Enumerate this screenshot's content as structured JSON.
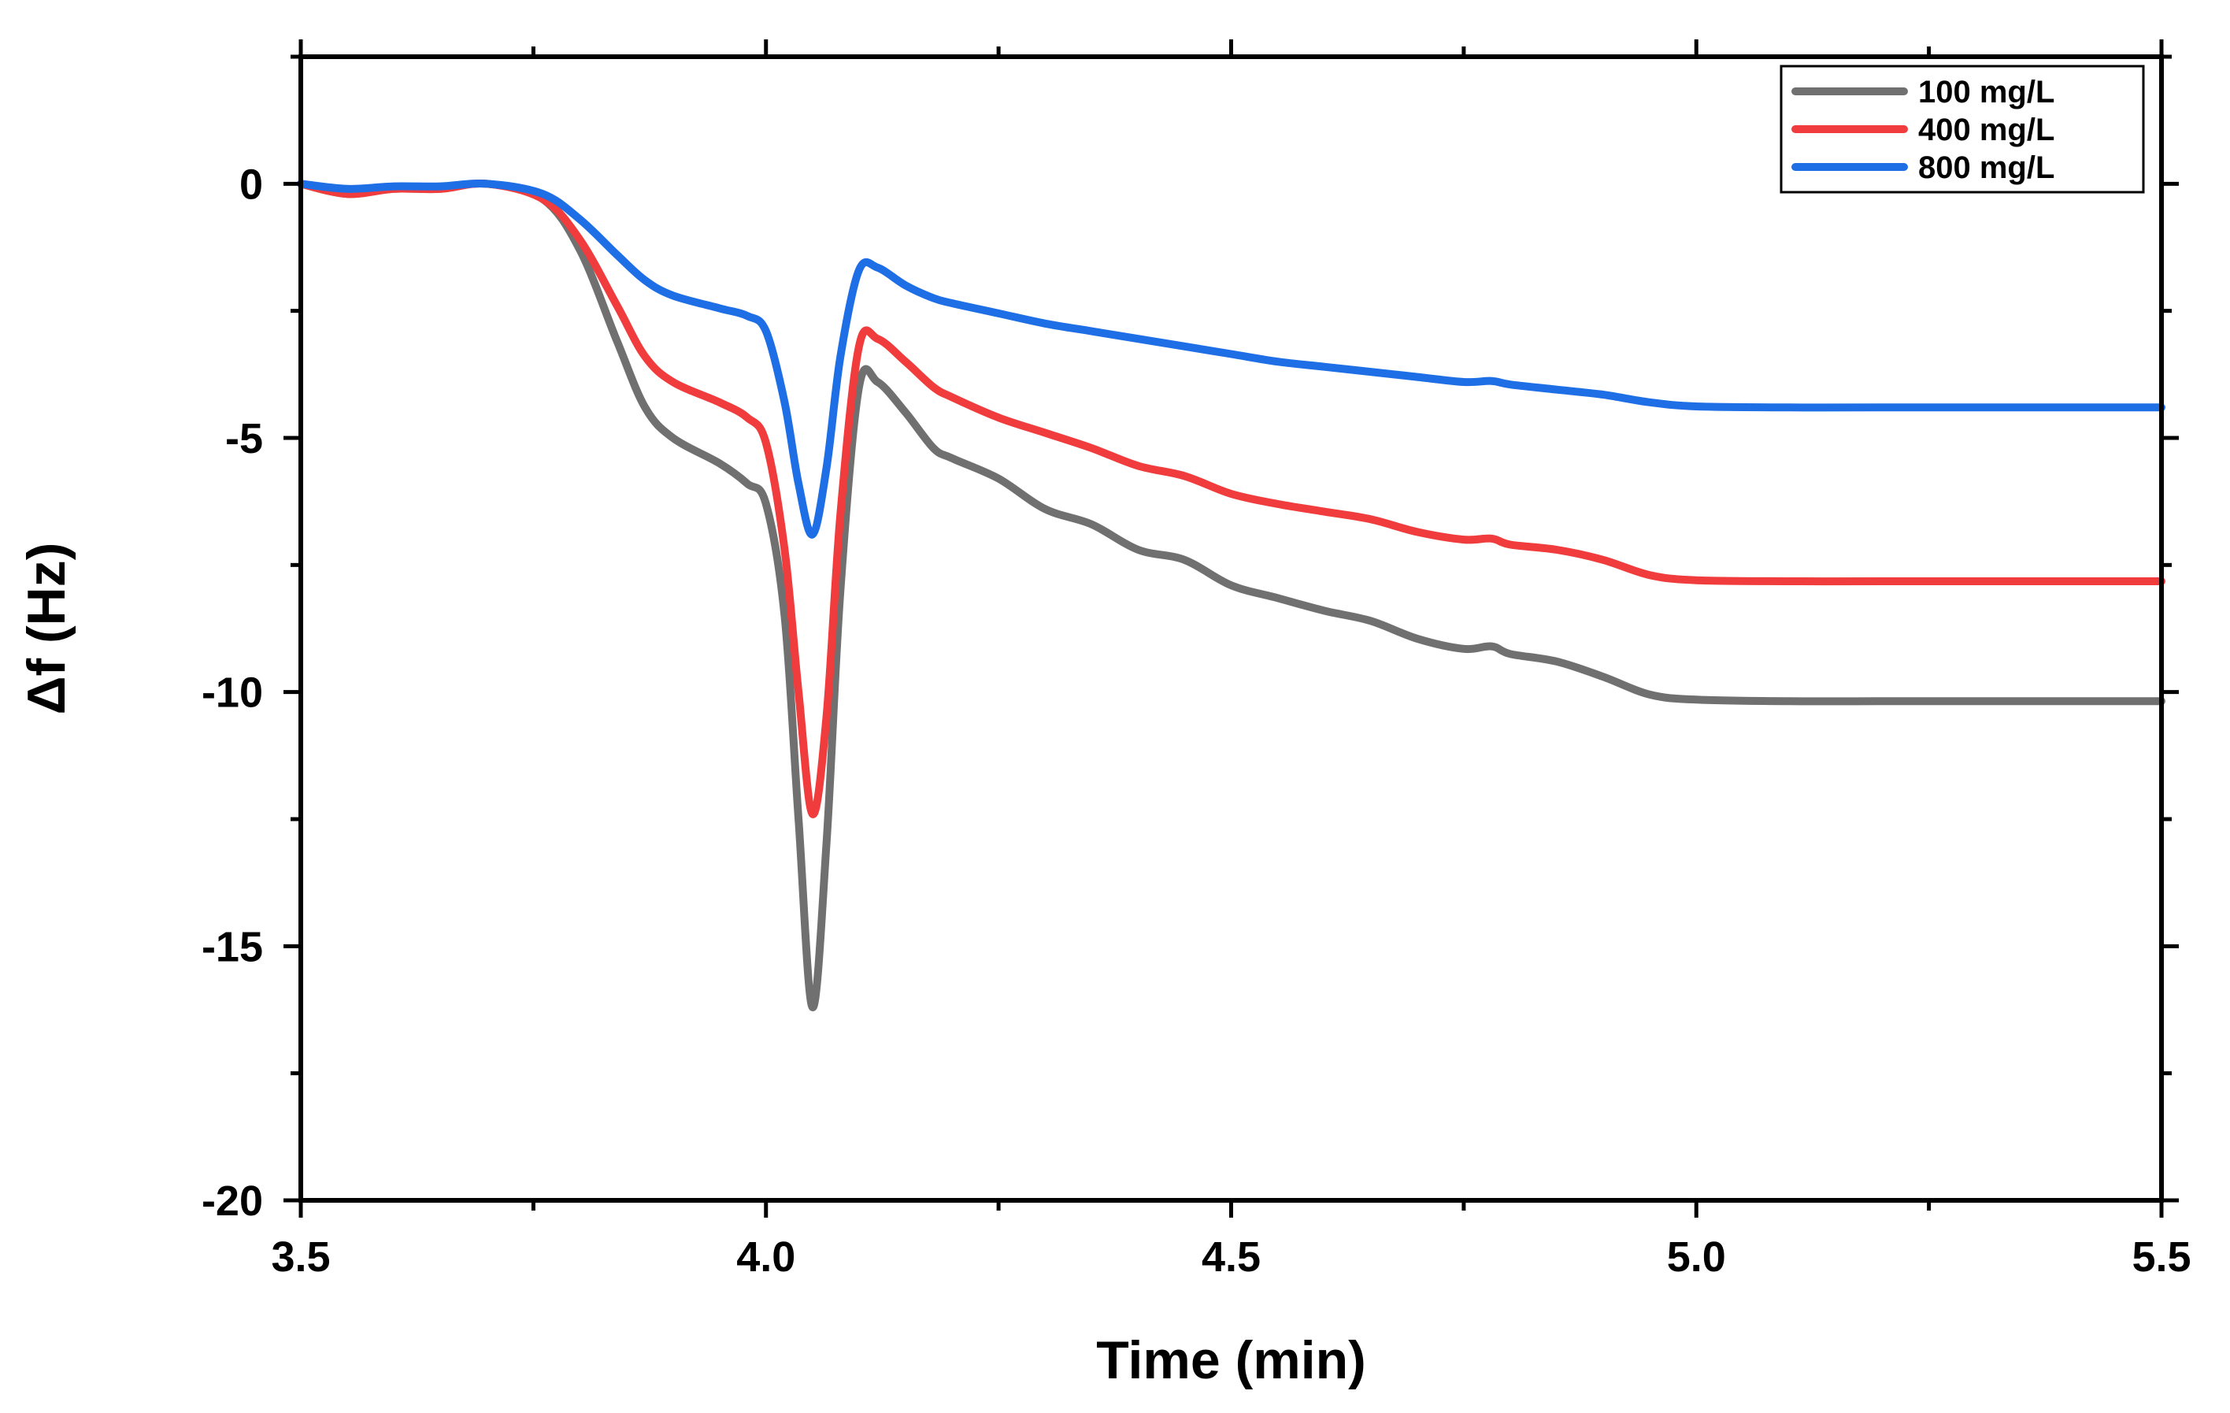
{
  "chart_data": {
    "type": "line",
    "title": "",
    "xlabel": "Time (min)",
    "ylabel": "Δf (Hz)",
    "xlim": [
      3.5,
      5.5
    ],
    "ylim": [
      -20,
      2.5
    ],
    "x_ticks": [
      3.5,
      4.0,
      4.5,
      5.0,
      5.5
    ],
    "x_tick_labels": [
      "3.5",
      "4.0",
      "4.5",
      "5.0",
      "5.5"
    ],
    "y_ticks": [
      0,
      -5,
      -10,
      -15,
      -20
    ],
    "y_tick_labels": [
      "0",
      "-5",
      "-10",
      "-15",
      "-20"
    ],
    "grid": false,
    "legend_position": "top-right",
    "series": [
      {
        "name": "100 mg/L",
        "color": "#707070",
        "points": [
          [
            3.5,
            0
          ],
          [
            3.55,
            -0.2
          ],
          [
            3.6,
            -0.1
          ],
          [
            3.65,
            -0.1
          ],
          [
            3.7,
            0
          ],
          [
            3.76,
            -0.3
          ],
          [
            3.8,
            -1.3
          ],
          [
            3.84,
            -3.1
          ],
          [
            3.87,
            -4.4
          ],
          [
            3.9,
            -5
          ],
          [
            3.95,
            -5.5
          ],
          [
            3.98,
            -5.9
          ],
          [
            4.0,
            -6.3
          ],
          [
            4.02,
            -8.5
          ],
          [
            4.035,
            -12.5
          ],
          [
            4.05,
            -16.2
          ],
          [
            4.065,
            -13
          ],
          [
            4.08,
            -8
          ],
          [
            4.1,
            -4
          ],
          [
            4.12,
            -3.9
          ],
          [
            4.15,
            -4.5
          ],
          [
            4.18,
            -5.2
          ],
          [
            4.2,
            -5.4
          ],
          [
            4.25,
            -5.8
          ],
          [
            4.3,
            -6.4
          ],
          [
            4.35,
            -6.7
          ],
          [
            4.4,
            -7.2
          ],
          [
            4.45,
            -7.4
          ],
          [
            4.5,
            -7.9
          ],
          [
            4.55,
            -8.15
          ],
          [
            4.6,
            -8.4
          ],
          [
            4.65,
            -8.6
          ],
          [
            4.7,
            -8.95
          ],
          [
            4.75,
            -9.15
          ],
          [
            4.78,
            -9.1
          ],
          [
            4.8,
            -9.25
          ],
          [
            4.85,
            -9.4
          ],
          [
            4.9,
            -9.7
          ],
          [
            4.95,
            -10.05
          ],
          [
            5.0,
            -10.15
          ],
          [
            5.1,
            -10.18
          ],
          [
            5.2,
            -10.18
          ],
          [
            5.3,
            -10.18
          ],
          [
            5.4,
            -10.18
          ],
          [
            5.5,
            -10.18
          ]
        ]
      },
      {
        "name": "400 mg/L",
        "color": "#f03c3c",
        "points": [
          [
            3.5,
            0
          ],
          [
            3.55,
            -0.2
          ],
          [
            3.6,
            -0.1
          ],
          [
            3.65,
            -0.1
          ],
          [
            3.7,
            0
          ],
          [
            3.76,
            -0.3
          ],
          [
            3.8,
            -1.1
          ],
          [
            3.84,
            -2.4
          ],
          [
            3.87,
            -3.4
          ],
          [
            3.9,
            -3.9
          ],
          [
            3.95,
            -4.3
          ],
          [
            3.98,
            -4.6
          ],
          [
            4.0,
            -5.1
          ],
          [
            4.02,
            -7.2
          ],
          [
            4.035,
            -10
          ],
          [
            4.05,
            -12.4
          ],
          [
            4.065,
            -10.5
          ],
          [
            4.08,
            -6.5
          ],
          [
            4.1,
            -3.2
          ],
          [
            4.12,
            -3.05
          ],
          [
            4.15,
            -3.5
          ],
          [
            4.18,
            -4
          ],
          [
            4.2,
            -4.2
          ],
          [
            4.25,
            -4.6
          ],
          [
            4.3,
            -4.9
          ],
          [
            4.35,
            -5.2
          ],
          [
            4.4,
            -5.55
          ],
          [
            4.45,
            -5.75
          ],
          [
            4.5,
            -6.1
          ],
          [
            4.55,
            -6.3
          ],
          [
            4.6,
            -6.45
          ],
          [
            4.65,
            -6.6
          ],
          [
            4.7,
            -6.85
          ],
          [
            4.75,
            -7.0
          ],
          [
            4.78,
            -6.98
          ],
          [
            4.8,
            -7.1
          ],
          [
            4.85,
            -7.2
          ],
          [
            4.9,
            -7.4
          ],
          [
            4.95,
            -7.7
          ],
          [
            5.0,
            -7.8
          ],
          [
            5.1,
            -7.82
          ],
          [
            5.2,
            -7.82
          ],
          [
            5.3,
            -7.82
          ],
          [
            5.4,
            -7.82
          ],
          [
            5.5,
            -7.82
          ]
        ]
      },
      {
        "name": "800 mg/L",
        "color": "#1e6ee6",
        "points": [
          [
            3.5,
            0
          ],
          [
            3.55,
            -0.1
          ],
          [
            3.6,
            -0.05
          ],
          [
            3.65,
            -0.05
          ],
          [
            3.7,
            0
          ],
          [
            3.76,
            -0.2
          ],
          [
            3.8,
            -0.7
          ],
          [
            3.84,
            -1.4
          ],
          [
            3.87,
            -1.9
          ],
          [
            3.9,
            -2.2
          ],
          [
            3.95,
            -2.45
          ],
          [
            3.98,
            -2.6
          ],
          [
            4.0,
            -2.9
          ],
          [
            4.02,
            -4.3
          ],
          [
            4.035,
            -5.9
          ],
          [
            4.05,
            -6.9
          ],
          [
            4.065,
            -5.6
          ],
          [
            4.08,
            -3.4
          ],
          [
            4.1,
            -1.7
          ],
          [
            4.12,
            -1.65
          ],
          [
            4.15,
            -2
          ],
          [
            4.18,
            -2.25
          ],
          [
            4.2,
            -2.35
          ],
          [
            4.25,
            -2.55
          ],
          [
            4.3,
            -2.75
          ],
          [
            4.35,
            -2.9
          ],
          [
            4.4,
            -3.05
          ],
          [
            4.45,
            -3.2
          ],
          [
            4.5,
            -3.35
          ],
          [
            4.55,
            -3.5
          ],
          [
            4.6,
            -3.6
          ],
          [
            4.65,
            -3.7
          ],
          [
            4.7,
            -3.8
          ],
          [
            4.75,
            -3.9
          ],
          [
            4.78,
            -3.88
          ],
          [
            4.8,
            -3.95
          ],
          [
            4.85,
            -4.05
          ],
          [
            4.9,
            -4.15
          ],
          [
            4.95,
            -4.3
          ],
          [
            5.0,
            -4.38
          ],
          [
            5.1,
            -4.4
          ],
          [
            5.2,
            -4.4
          ],
          [
            5.3,
            -4.4
          ],
          [
            5.4,
            -4.4
          ],
          [
            5.5,
            -4.4
          ]
        ]
      }
    ]
  }
}
